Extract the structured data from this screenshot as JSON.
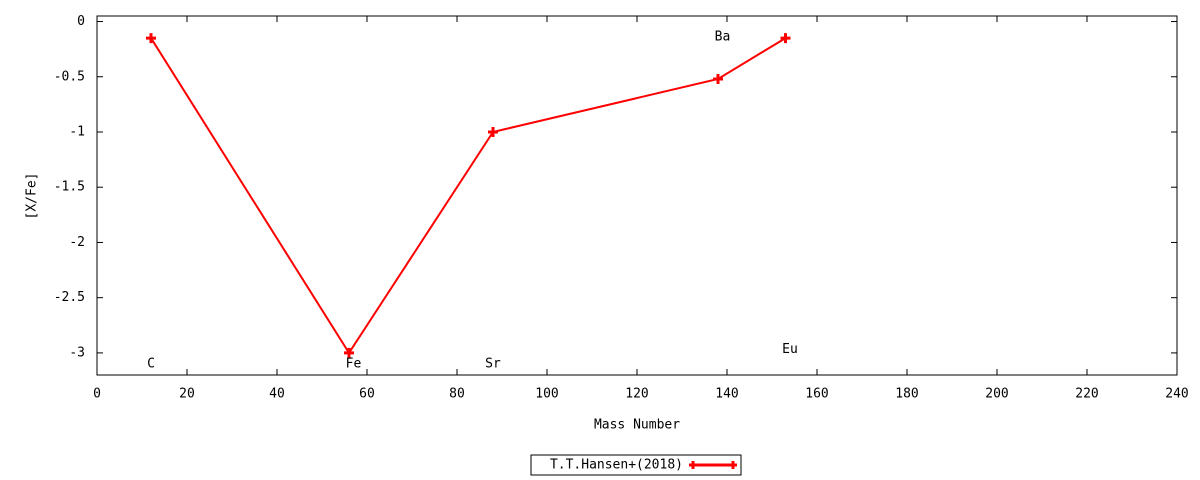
{
  "chart_data": {
    "type": "line",
    "xlabel": "Mass Number",
    "ylabel": "[X/Fe]",
    "series": [
      {
        "name": "T.T.Hansen+(2018)",
        "color": "#ff0000",
        "x": [
          12,
          56,
          88,
          138,
          153
        ],
        "values": [
          -0.15,
          -3.0,
          -1.0,
          -0.52,
          -0.15
        ]
      }
    ],
    "annotations": [
      {
        "text": "C",
        "x": 12,
        "y": -3.1
      },
      {
        "text": "Fe",
        "x": 57,
        "y": -3.1
      },
      {
        "text": "Sr",
        "x": 88,
        "y": -3.1
      },
      {
        "text": "Ba",
        "x": 139,
        "y": -0.14
      },
      {
        "text": "Eu",
        "x": 154,
        "y": -2.97
      }
    ],
    "xlim": [
      0,
      240
    ],
    "xticks": [
      0,
      20,
      40,
      60,
      80,
      100,
      120,
      140,
      160,
      180,
      200,
      220,
      240
    ],
    "ylim": [
      -3.2,
      0.05
    ],
    "yticks": [
      0,
      -0.5,
      -1,
      -1.5,
      -2,
      -2.5,
      -3
    ],
    "legend": "bottom"
  }
}
